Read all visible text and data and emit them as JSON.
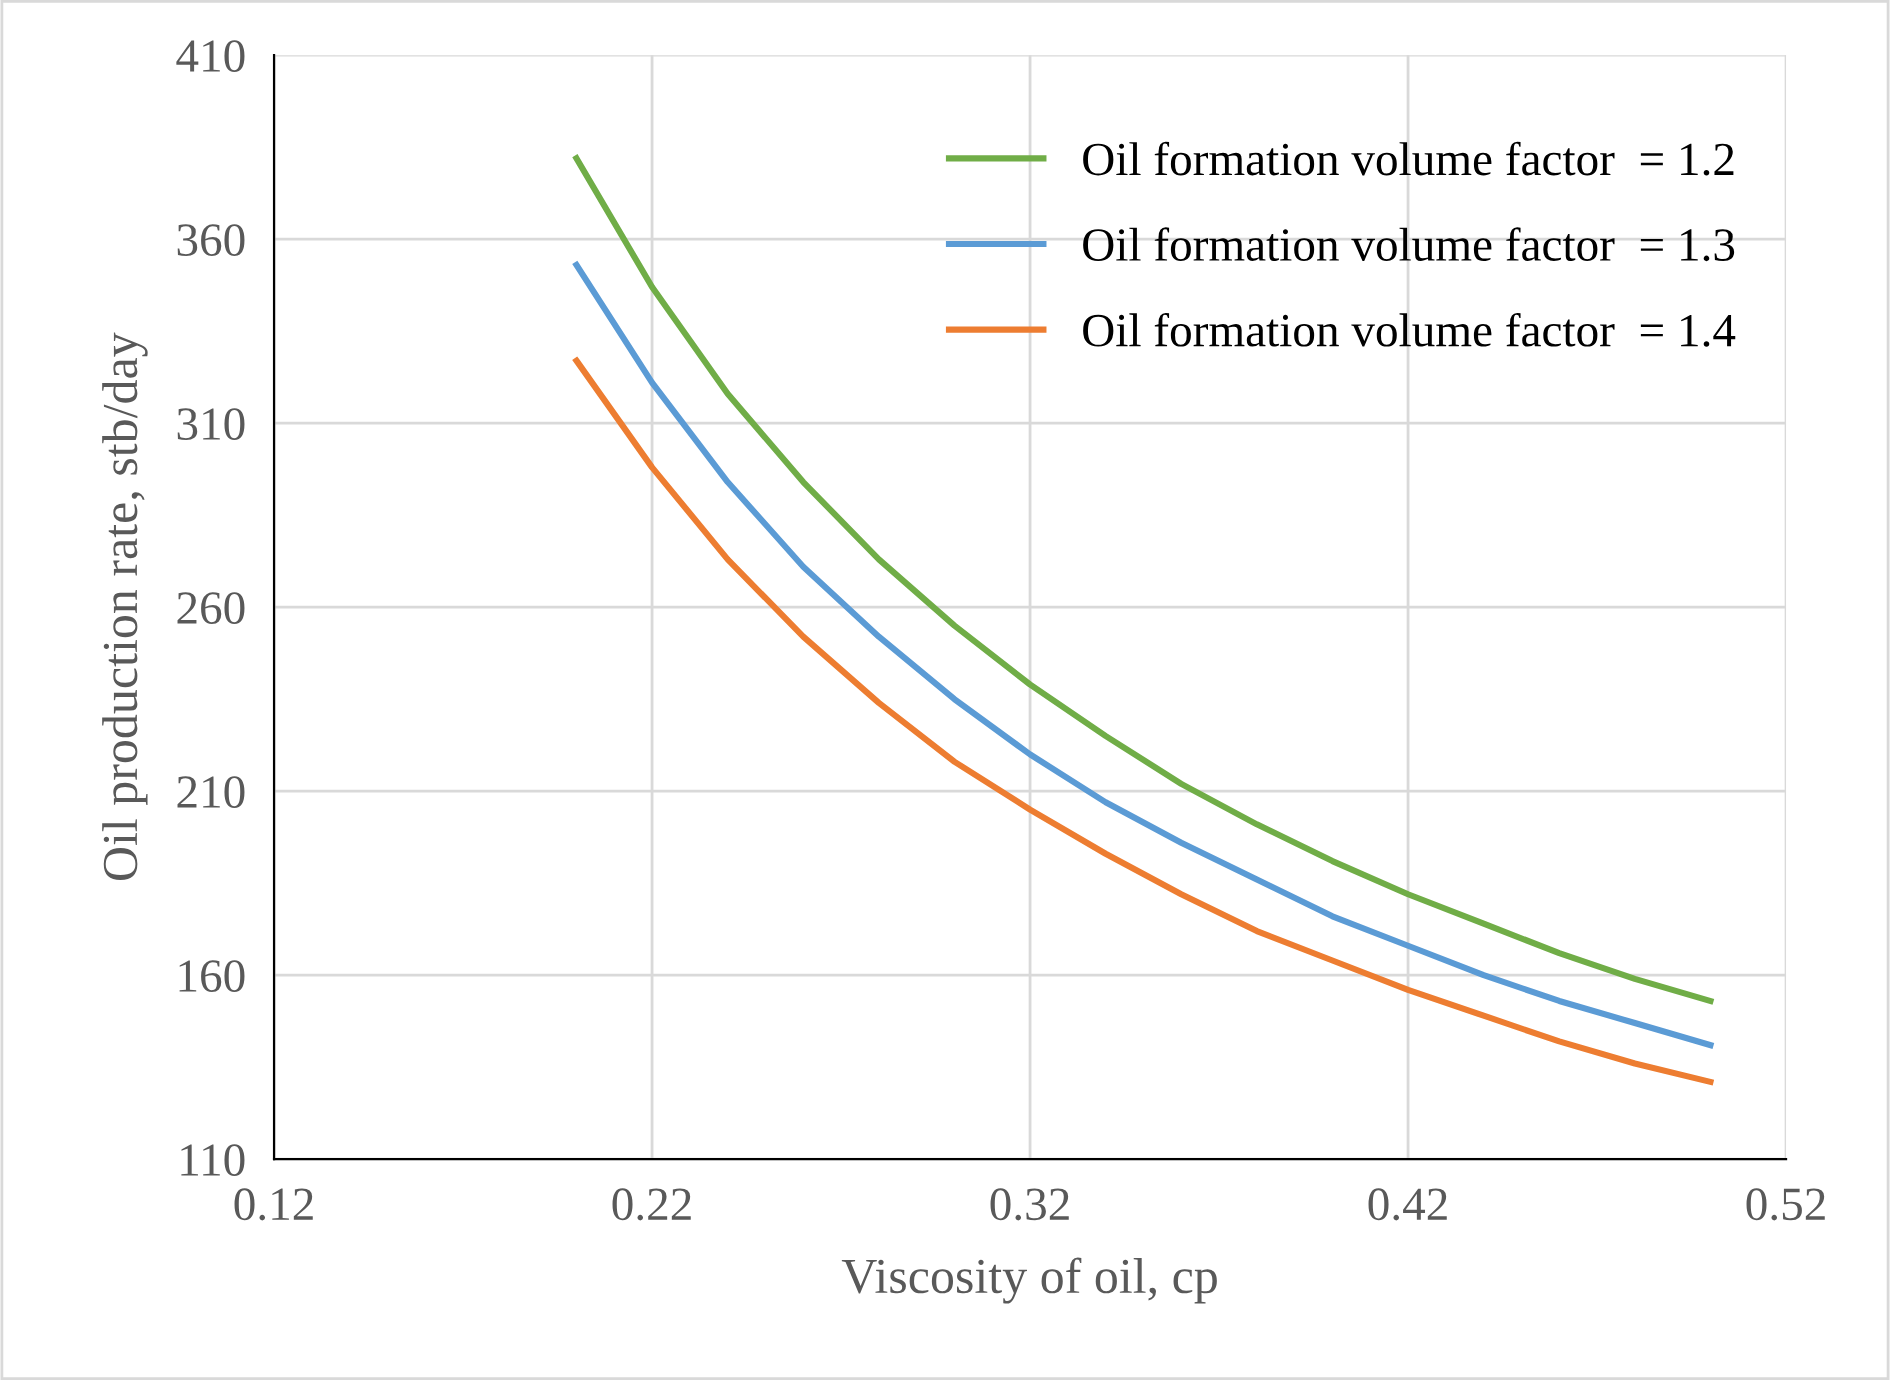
{
  "chart_data": {
    "type": "line",
    "xlabel": "Viscosity of oil, cp",
    "ylabel": "Oil production rate, stb/day",
    "x": [
      0.2,
      0.22,
      0.24,
      0.26,
      0.28,
      0.3,
      0.32,
      0.34,
      0.36,
      0.38,
      0.4,
      0.42,
      0.44,
      0.46,
      0.48,
      0.5
    ],
    "series": [
      {
        "name": "Oil formation volume factor  = 1.2",
        "color": "#70ad47",
        "values": [
          382,
          347,
          318,
          294,
          273,
          255,
          239,
          225,
          212,
          201,
          191,
          182,
          174,
          166,
          159,
          153
        ]
      },
      {
        "name": "Oil formation volume factor  = 1.3",
        "color": "#5b9bd5",
        "values": [
          353,
          321,
          294,
          271,
          252,
          235,
          220,
          207,
          196,
          186,
          176,
          168,
          160,
          153,
          147,
          141
        ]
      },
      {
        "name": "Oil formation volume factor  = 1.4",
        "color": "#ed7d31",
        "values": [
          327,
          298,
          273,
          252,
          234,
          218,
          205,
          193,
          182,
          172,
          164,
          156,
          149,
          142,
          136,
          131
        ]
      }
    ],
    "xlim": [
      0.12,
      0.52
    ],
    "xticks": [
      {
        "value": 0.12,
        "label": "0.12"
      },
      {
        "value": 0.22,
        "label": "0.22"
      },
      {
        "value": 0.32,
        "label": "0.32"
      },
      {
        "value": 0.42,
        "label": "0.42"
      },
      {
        "value": 0.52,
        "label": "0.52"
      }
    ],
    "ylim": [
      110,
      410
    ],
    "yticks": [
      110,
      160,
      210,
      260,
      310,
      360,
      410
    ],
    "grid": true,
    "legend": "top right",
    "marker": "none",
    "line_style": "solid"
  }
}
